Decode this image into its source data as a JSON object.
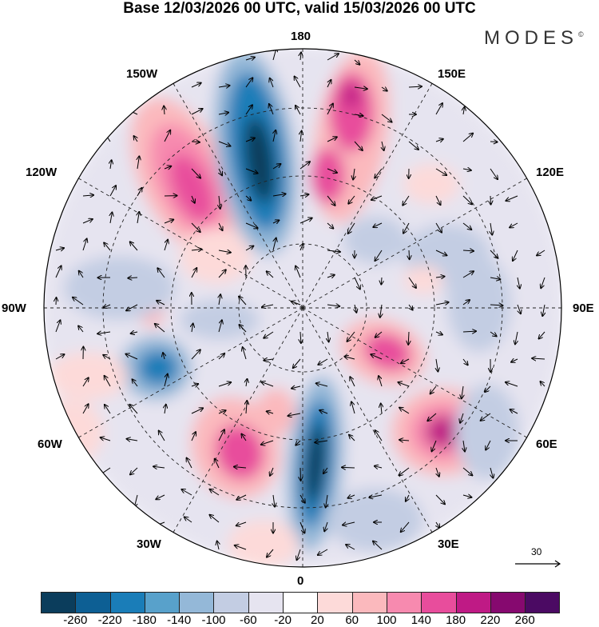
{
  "title": "Base 12/03/2026 00 UTC, valid 15/03/2026 00 UTC",
  "logo": "MODES",
  "logo_mark": "©",
  "longitude_labels": {
    "n180": "180",
    "e150": "150E",
    "e120": "120E",
    "e90": "90E",
    "e60": "60E",
    "e30": "30E",
    "s0": "0",
    "w30": "30W",
    "w60": "60W",
    "w90": "90W",
    "w120": "120W",
    "w150": "150W"
  },
  "vector_reference": "30",
  "colorbar": {
    "colors": [
      "#0b3d5c",
      "#0d5f94",
      "#1a7db8",
      "#58a1cb",
      "#94b8d8",
      "#c3cde3",
      "#e6e4f0",
      "#ffffff",
      "#fddad9",
      "#fbb9bd",
      "#f78aaf",
      "#e84d9c",
      "#bf1a85",
      "#86096f",
      "#4b0a63"
    ],
    "ticks": [
      "-260",
      "-220",
      "-180",
      "-140",
      "-100",
      "-60",
      "-20",
      "20",
      "60",
      "100",
      "140",
      "180",
      "220",
      "260"
    ]
  }
}
